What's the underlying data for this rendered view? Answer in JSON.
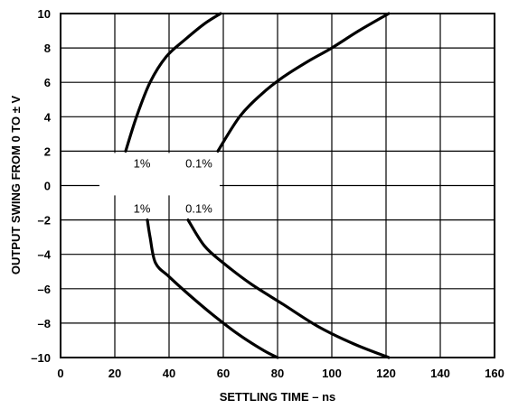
{
  "chart_data": {
    "type": "line",
    "title": "",
    "xlabel": "SETTLING TIME – ns",
    "ylabel": "OUTPUT SWING FROM 0 TO ± V",
    "xlim": [
      0,
      160
    ],
    "ylim": [
      -10,
      10
    ],
    "x_ticks": [
      "0",
      "20",
      "40",
      "60",
      "80",
      "100",
      "120",
      "140",
      "160"
    ],
    "y_ticks": [
      "10",
      "8",
      "6",
      "4",
      "2",
      "0",
      "–2",
      "–4",
      "–6",
      "–8",
      "–10"
    ],
    "grid": true,
    "series": [
      {
        "name": "1%",
        "x": [
          24,
          28,
          33,
          39,
          46,
          53,
          59
        ],
        "y": [
          2,
          4,
          6,
          7.5,
          8.5,
          9.4,
          10
        ]
      },
      {
        "name": "0.1%",
        "x": [
          58,
          66,
          74,
          82,
          91,
          100,
          110,
          121
        ],
        "y": [
          2,
          4,
          5.3,
          6.3,
          7.2,
          8,
          9,
          10
        ]
      },
      {
        "name": "1%",
        "x": [
          32,
          33,
          35,
          40,
          47,
          56,
          66,
          75,
          80
        ],
        "y": [
          -2,
          -3,
          -4.5,
          -5.3,
          -6.3,
          -7.5,
          -8.7,
          -9.6,
          -10
        ]
      },
      {
        "name": "0.1%",
        "x": [
          47,
          53,
          60,
          70,
          82,
          95,
          108,
          121
        ],
        "y": [
          -2,
          -3.5,
          -4.5,
          -5.7,
          -6.9,
          -8.2,
          -9.2,
          -10
        ]
      }
    ],
    "labels": [
      {
        "text": "1%",
        "x": 30,
        "y": 1.3
      },
      {
        "text": "0.1%",
        "x": 51,
        "y": 1.3
      },
      {
        "text": "1%",
        "x": 30,
        "y": -1.3
      },
      {
        "text": "0.1%",
        "x": 51,
        "y": -1.3
      }
    ]
  }
}
